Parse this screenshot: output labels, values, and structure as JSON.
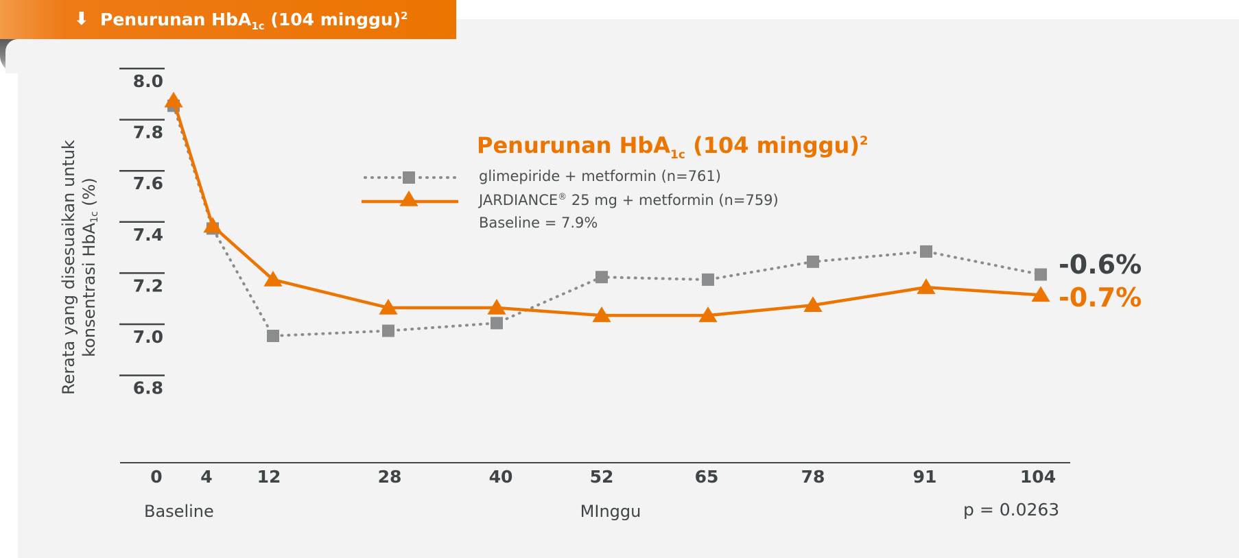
{
  "header": {
    "arrow": "⬇",
    "title_main": "Penurunan HbA",
    "title_sub": "1c",
    "title_rest": " (104 minggu)",
    "title_sup": "2"
  },
  "colors": {
    "orange": "#ec7400",
    "gray": "#8a8c8e",
    "text": "#3f4447"
  },
  "chart_data": {
    "type": "line",
    "title_main": "Penurunan HbA",
    "title_sub": "1c",
    "title_rest": " (104 minggu)",
    "title_sup": "2",
    "ylabel_line1": "Rerata yang disesuaikan untuk",
    "ylabel_line2_main": "konsentrasi HbA",
    "ylabel_line2_sub": "1c",
    "ylabel_line2_rest": "  (%)",
    "xlabel": "MInggu",
    "baseline_label": "Baseline",
    "x_ticks": [
      "0",
      "4",
      "12",
      "28",
      "40",
      "52",
      "65",
      "78",
      "91",
      "104"
    ],
    "y_ticks": [
      "8.0",
      "7.8",
      "7.6",
      "7.4",
      "7.2",
      "7.0",
      "6.8"
    ],
    "y_tick_values": [
      8.0,
      7.8,
      7.6,
      7.4,
      7.2,
      7.0,
      6.8
    ],
    "ylim": [
      6.5,
      8.05
    ],
    "x": [
      0,
      4,
      12,
      28,
      40,
      52,
      65,
      78,
      91,
      104
    ],
    "series": [
      {
        "name": "glimepiride + metformin (n=761)",
        "style": "dotted",
        "marker": "square",
        "color": "#8a8c8e",
        "values": [
          7.9,
          7.42,
          7.0,
          7.02,
          7.05,
          7.23,
          7.22,
          7.29,
          7.33,
          7.24
        ],
        "end_label": "-0.6%"
      },
      {
        "name_main": "JARDIANCE",
        "name_sup": "®",
        "name_rest": " 25 mg + metformin (n=759)",
        "style": "solid",
        "marker": "triangle",
        "color": "#ec7400",
        "values": [
          7.92,
          7.43,
          7.22,
          7.11,
          7.11,
          7.08,
          7.08,
          7.12,
          7.19,
          7.16
        ],
        "end_label": "-0.7%"
      }
    ],
    "legend_note": "Baseline = 7.9%",
    "p_value": "p = 0.0263",
    "grid": false,
    "legend_position": "top-center"
  }
}
